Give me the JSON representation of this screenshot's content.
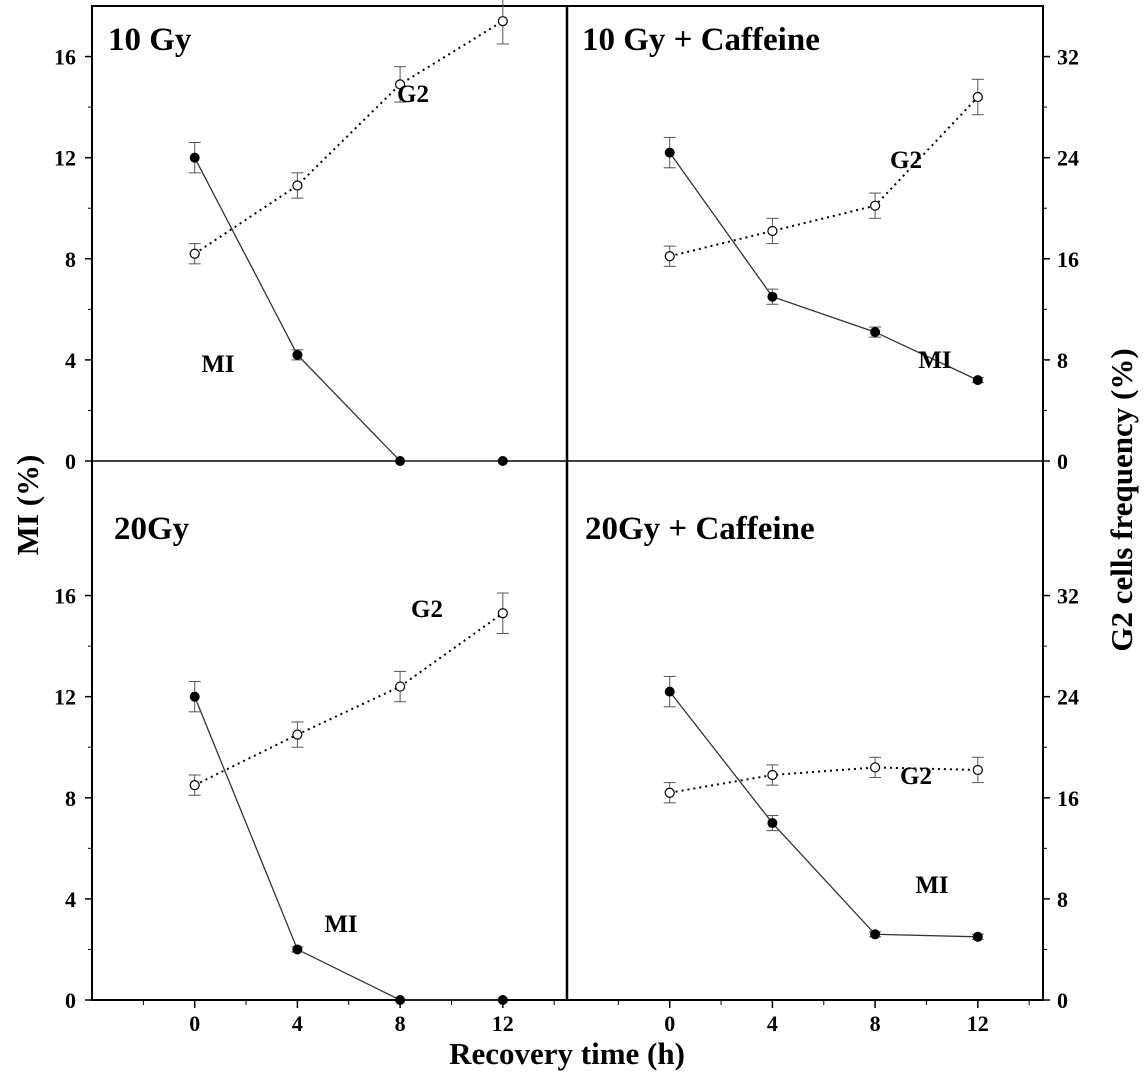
{
  "chart_data": {
    "type": "line",
    "xlabel": "Recovery time (h)",
    "ylabel_left": "MI (%)",
    "ylabel_right": "G2 cells frequency (%)",
    "x_ticks": [
      0,
      4,
      8,
      12
    ],
    "xlim": [
      -4,
      14.5
    ],
    "left_ylim": [
      0,
      18
    ],
    "left_yticks": [
      0,
      4,
      8,
      12,
      16
    ],
    "right_ylim": [
      0,
      36
    ],
    "right_yticks": [
      0,
      8,
      16,
      24,
      32
    ],
    "panels": [
      {
        "title": "10 Gy",
        "series": [
          {
            "name": "MI",
            "axis": "left",
            "style": "solid-filled",
            "x": [
              0,
              4,
              8,
              12
            ],
            "y": [
              12.0,
              4.2,
              0.0,
              0.0
            ],
            "err": [
              0.6,
              0.2,
              0,
              0
            ]
          },
          {
            "name": "G2",
            "axis": "left",
            "style": "dotted-open",
            "x": [
              0,
              4,
              8,
              12
            ],
            "y": [
              8.2,
              10.9,
              14.9,
              17.4
            ],
            "err": [
              0.4,
              0.5,
              0.7,
              0.9
            ]
          }
        ]
      },
      {
        "title": "10 Gy + Caffeine",
        "series": [
          {
            "name": "MI",
            "axis": "left",
            "style": "solid-filled",
            "x": [
              0,
              4,
              8,
              12
            ],
            "y": [
              12.2,
              6.5,
              5.1,
              3.2
            ],
            "err": [
              0.6,
              0.3,
              0.2,
              0.1
            ]
          },
          {
            "name": "G2",
            "axis": "left",
            "style": "dotted-open",
            "x": [
              0,
              4,
              8,
              12
            ],
            "y": [
              8.1,
              9.1,
              10.1,
              14.4
            ],
            "err": [
              0.4,
              0.5,
              0.5,
              0.7
            ]
          }
        ]
      },
      {
        "title": "20Gy",
        "series": [
          {
            "name": "MI",
            "axis": "left",
            "style": "solid-filled",
            "x": [
              0,
              4,
              8,
              12
            ],
            "y": [
              12.0,
              2.0,
              0.0,
              0.0
            ],
            "err": [
              0.6,
              0.1,
              0,
              0
            ]
          },
          {
            "name": "G2",
            "axis": "left",
            "style": "dotted-open",
            "x": [
              0,
              4,
              8,
              12
            ],
            "y": [
              8.5,
              10.5,
              12.4,
              15.3
            ],
            "err": [
              0.4,
              0.5,
              0.6,
              0.8
            ]
          }
        ]
      },
      {
        "title": "20Gy + Caffeine",
        "series": [
          {
            "name": "MI",
            "axis": "left",
            "style": "solid-filled",
            "x": [
              0,
              4,
              8,
              12
            ],
            "y": [
              12.2,
              7.0,
              2.6,
              2.5
            ],
            "err": [
              0.6,
              0.3,
              0.1,
              0.1
            ]
          },
          {
            "name": "G2",
            "axis": "left",
            "style": "dotted-open",
            "x": [
              0,
              4,
              8,
              12
            ],
            "y": [
              8.2,
              8.9,
              9.2,
              9.1
            ],
            "err": [
              0.4,
              0.4,
              0.4,
              0.5
            ]
          }
        ]
      }
    ]
  }
}
